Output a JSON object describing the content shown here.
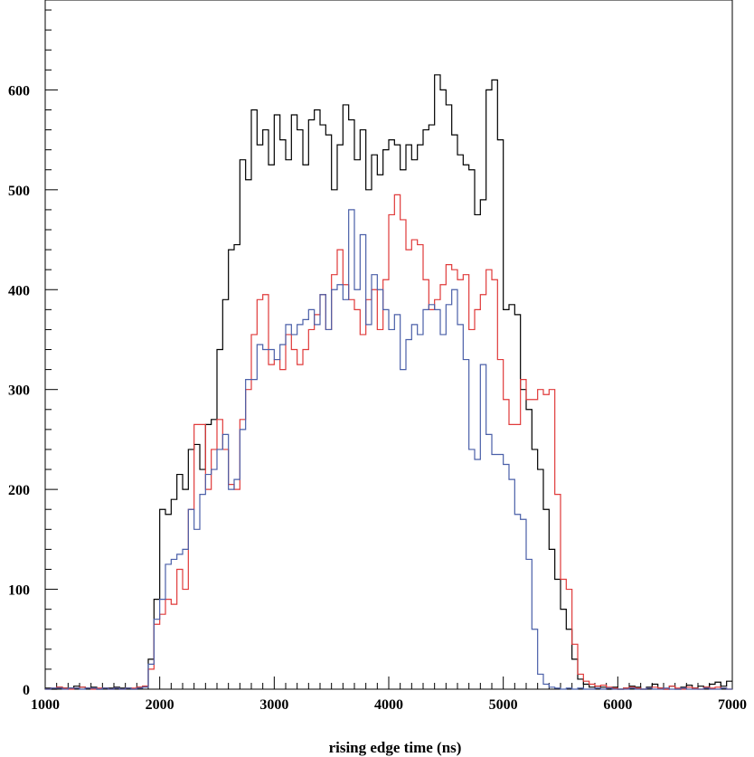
{
  "chart_data": {
    "type": "line",
    "subtype": "step-histogram",
    "xlabel": "rising edge time (ns)",
    "ylabel": "",
    "xlim": [
      1000,
      7000
    ],
    "ylim": [
      0,
      690
    ],
    "grid": false,
    "bin_width": 50,
    "x_ticks": [
      1000,
      2000,
      3000,
      4000,
      5000,
      6000,
      7000
    ],
    "y_ticks": [
      0,
      100,
      200,
      300,
      400,
      500,
      600
    ],
    "x_tick_labels": [
      "1000",
      "2000",
      "3000",
      "4000",
      "5000",
      "6000",
      "7000"
    ],
    "y_tick_labels": [
      "0",
      "100",
      "200",
      "300",
      "400",
      "500",
      "600"
    ],
    "series": [
      {
        "color": "#000000",
        "x": [
          1000,
          1050,
          1100,
          1150,
          1200,
          1250,
          1300,
          1350,
          1400,
          1450,
          1500,
          1550,
          1600,
          1650,
          1700,
          1750,
          1800,
          1850,
          1900,
          1950,
          2000,
          2050,
          2100,
          2150,
          2200,
          2250,
          2300,
          2350,
          2400,
          2450,
          2500,
          2550,
          2600,
          2650,
          2700,
          2750,
          2800,
          2850,
          2900,
          2950,
          3000,
          3050,
          3100,
          3150,
          3200,
          3250,
          3300,
          3350,
          3400,
          3450,
          3500,
          3550,
          3600,
          3650,
          3700,
          3750,
          3800,
          3850,
          3900,
          3950,
          4000,
          4050,
          4100,
          4150,
          4200,
          4250,
          4300,
          4350,
          4400,
          4450,
          4500,
          4550,
          4600,
          4650,
          4700,
          4750,
          4800,
          4850,
          4900,
          4950,
          5000,
          5050,
          5100,
          5150,
          5200,
          5250,
          5300,
          5350,
          5400,
          5450,
          5500,
          5550,
          5600,
          5650,
          5700,
          5750,
          5800,
          5850,
          5900,
          5950,
          6000,
          6050,
          6100,
          6150,
          6200,
          6250,
          6300,
          6350,
          6400,
          6450,
          6500,
          6550,
          6600,
          6650,
          6700,
          6750,
          6800,
          6850,
          6900,
          6950
        ],
        "values": [
          1,
          0,
          2,
          1,
          1,
          3,
          2,
          1,
          2,
          0,
          1,
          1,
          2,
          1,
          1,
          0,
          2,
          3,
          30,
          90,
          180,
          175,
          190,
          215,
          200,
          240,
          245,
          220,
          265,
          270,
          340,
          390,
          440,
          445,
          530,
          510,
          580,
          545,
          560,
          525,
          575,
          550,
          530,
          575,
          560,
          525,
          570,
          580,
          565,
          555,
          500,
          545,
          585,
          570,
          530,
          560,
          500,
          535,
          515,
          540,
          550,
          545,
          520,
          545,
          530,
          545,
          560,
          565,
          615,
          600,
          585,
          555,
          535,
          525,
          520,
          475,
          490,
          600,
          610,
          550,
          380,
          385,
          375,
          300,
          280,
          240,
          220,
          180,
          140,
          110,
          80,
          60,
          30,
          10,
          5,
          2,
          3,
          2,
          0,
          2,
          0,
          1,
          3,
          2,
          0,
          2,
          5,
          1,
          0,
          3,
          0,
          2,
          4,
          1,
          3,
          2,
          5,
          7,
          3,
          8
        ]
      },
      {
        "color": "#e03a3a",
        "x": [
          1000,
          1050,
          1100,
          1150,
          1200,
          1250,
          1300,
          1350,
          1400,
          1450,
          1500,
          1550,
          1600,
          1650,
          1700,
          1750,
          1800,
          1850,
          1900,
          1950,
          2000,
          2050,
          2100,
          2150,
          2200,
          2250,
          2300,
          2350,
          2400,
          2450,
          2500,
          2550,
          2600,
          2650,
          2700,
          2750,
          2800,
          2850,
          2900,
          2950,
          3000,
          3050,
          3100,
          3150,
          3200,
          3250,
          3300,
          3350,
          3400,
          3450,
          3500,
          3550,
          3600,
          3650,
          3700,
          3750,
          3800,
          3850,
          3900,
          3950,
          4000,
          4050,
          4100,
          4150,
          4200,
          4250,
          4300,
          4350,
          4400,
          4450,
          4500,
          4550,
          4600,
          4650,
          4700,
          4750,
          4800,
          4850,
          4900,
          4950,
          5000,
          5050,
          5100,
          5150,
          5200,
          5250,
          5300,
          5350,
          5400,
          5450,
          5500,
          5550,
          5600,
          5650,
          5700,
          5750,
          5800,
          5850,
          5900,
          5950,
          6000,
          6050,
          6100,
          6150,
          6200,
          6250,
          6300,
          6350,
          6400,
          6450,
          6500,
          6550,
          6600,
          6650,
          6700,
          6750,
          6800,
          6850,
          6900,
          6950
        ],
        "values": [
          0,
          1,
          2,
          1,
          0,
          1,
          2,
          1,
          0,
          1,
          1,
          0,
          1,
          0,
          1,
          1,
          2,
          3,
          20,
          65,
          75,
          90,
          85,
          120,
          100,
          180,
          265,
          265,
          200,
          240,
          270,
          240,
          205,
          200,
          270,
          300,
          355,
          390,
          395,
          325,
          330,
          320,
          355,
          340,
          325,
          340,
          360,
          375,
          395,
          360,
          415,
          440,
          405,
          390,
          380,
          355,
          390,
          400,
          360,
          410,
          475,
          495,
          470,
          440,
          450,
          445,
          410,
          380,
          390,
          405,
          425,
          420,
          410,
          415,
          360,
          380,
          395,
          420,
          410,
          330,
          290,
          265,
          265,
          310,
          290,
          290,
          300,
          295,
          300,
          195,
          110,
          100,
          45,
          15,
          8,
          5,
          3,
          4,
          2,
          1,
          0,
          1,
          2,
          1,
          0,
          1,
          2,
          1,
          0,
          3,
          1,
          0,
          2,
          1,
          0,
          2,
          1,
          2,
          1,
          0
        ]
      },
      {
        "color": "#4a5fa8",
        "x": [
          1000,
          1050,
          1100,
          1150,
          1200,
          1250,
          1300,
          1350,
          1400,
          1450,
          1500,
          1550,
          1600,
          1650,
          1700,
          1750,
          1800,
          1850,
          1900,
          1950,
          2000,
          2050,
          2100,
          2150,
          2200,
          2250,
          2300,
          2350,
          2400,
          2450,
          2500,
          2550,
          2600,
          2650,
          2700,
          2750,
          2800,
          2850,
          2900,
          2950,
          3000,
          3050,
          3100,
          3150,
          3200,
          3250,
          3300,
          3350,
          3400,
          3450,
          3500,
          3550,
          3600,
          3650,
          3700,
          3750,
          3800,
          3850,
          3900,
          3950,
          4000,
          4050,
          4100,
          4150,
          4200,
          4250,
          4300,
          4350,
          4400,
          4450,
          4500,
          4550,
          4600,
          4650,
          4700,
          4750,
          4800,
          4850,
          4900,
          4950,
          5000,
          5050,
          5100,
          5150,
          5200,
          5250,
          5300,
          5350,
          5400,
          5450,
          5500,
          5550,
          5600,
          5650,
          5700,
          5750,
          5800,
          5850,
          5900,
          5950,
          6000,
          6050,
          6100,
          6150,
          6200,
          6250,
          6300,
          6350,
          6400,
          6450,
          6500,
          6550,
          6600,
          6650,
          6700,
          6750,
          6800,
          6850,
          6900,
          6950
        ],
        "values": [
          0,
          1,
          1,
          0,
          1,
          1,
          0,
          1,
          1,
          0,
          1,
          0,
          1,
          0,
          1,
          0,
          1,
          2,
          25,
          70,
          90,
          125,
          130,
          135,
          140,
          180,
          160,
          195,
          215,
          220,
          240,
          255,
          200,
          210,
          260,
          310,
          310,
          345,
          340,
          340,
          330,
          345,
          365,
          355,
          365,
          370,
          380,
          365,
          395,
          360,
          400,
          405,
          390,
          480,
          400,
          455,
          365,
          415,
          400,
          380,
          360,
          375,
          320,
          350,
          365,
          355,
          380,
          385,
          380,
          355,
          385,
          400,
          365,
          330,
          240,
          230,
          325,
          255,
          235,
          235,
          225,
          210,
          175,
          170,
          130,
          60,
          15,
          5,
          2,
          1,
          0,
          1,
          0,
          1,
          0,
          0,
          1,
          0,
          1,
          0,
          0,
          0,
          1,
          0,
          0,
          1,
          0,
          0,
          1,
          0,
          0,
          1,
          0,
          0,
          0,
          1,
          0,
          0,
          1,
          0
        ]
      }
    ]
  }
}
